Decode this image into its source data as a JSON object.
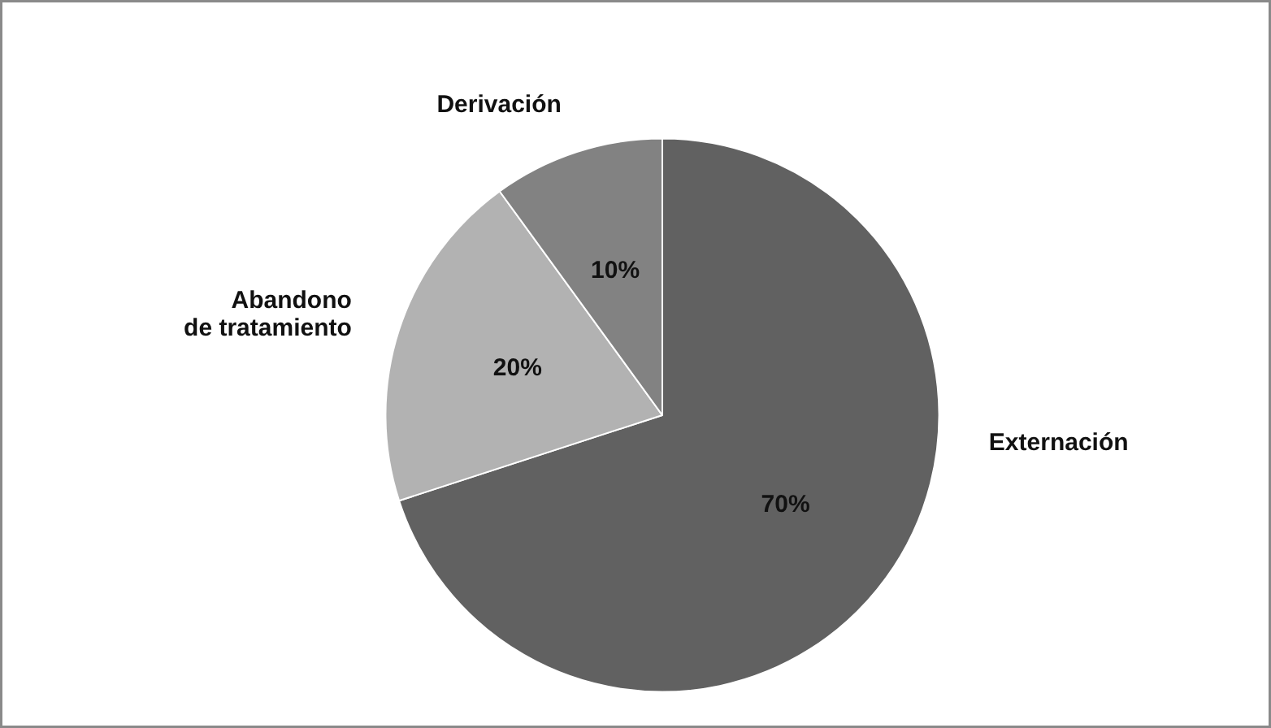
{
  "chart_data": {
    "type": "pie",
    "categories": [
      "Externación",
      "Abandono\nde tratamiento",
      "Derivación"
    ],
    "values": [
      70,
      20,
      10
    ],
    "colors": [
      "#616161",
      "#b2b2b2",
      "#828282"
    ],
    "value_labels": [
      "70%",
      "20%",
      "10%"
    ]
  }
}
